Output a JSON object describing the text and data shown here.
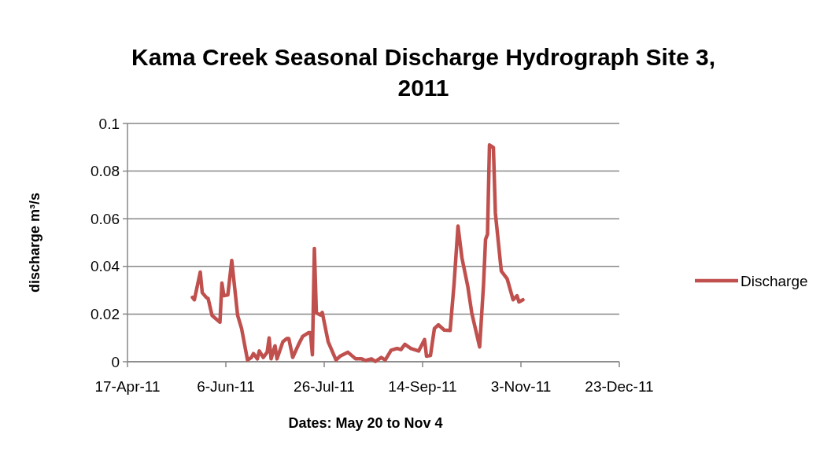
{
  "chart_data": {
    "type": "line",
    "title": "Kama Creek Seasonal Discharge Hydrograph Site 3, 2011",
    "xlabel": "Dates: May 20 to Nov 4",
    "ylabel": "discharge m³/s",
    "x": [
      "2011-05-20",
      "2011-05-21",
      "2011-05-24",
      "2011-05-25",
      "2011-05-27",
      "2011-05-28",
      "2011-05-30",
      "2011-06-03",
      "2011-06-04",
      "2011-06-05",
      "2011-06-07",
      "2011-06-09",
      "2011-06-12",
      "2011-06-14",
      "2011-06-17",
      "2011-06-19",
      "2011-06-20",
      "2011-06-22",
      "2011-06-23",
      "2011-06-25",
      "2011-06-27",
      "2011-06-28",
      "2011-06-29",
      "2011-07-01",
      "2011-07-02",
      "2011-07-05",
      "2011-07-07",
      "2011-07-08",
      "2011-07-10",
      "2011-07-13",
      "2011-07-15",
      "2011-07-18",
      "2011-07-19",
      "2011-07-20",
      "2011-07-21",
      "2011-07-22",
      "2011-07-24",
      "2011-07-25",
      "2011-07-28",
      "2011-08-01",
      "2011-08-03",
      "2011-08-07",
      "2011-08-11",
      "2011-08-14",
      "2011-08-16",
      "2011-08-19",
      "2011-08-21",
      "2011-08-24",
      "2011-08-26",
      "2011-08-29",
      "2011-09-01",
      "2011-09-03",
      "2011-09-05",
      "2011-09-08",
      "2011-09-12",
      "2011-09-15",
      "2011-09-16",
      "2011-09-18",
      "2011-09-20",
      "2011-09-22",
      "2011-09-25",
      "2011-09-28",
      "2011-09-30",
      "2011-10-02",
      "2011-10-04",
      "2011-10-07",
      "2011-10-09",
      "2011-10-13",
      "2011-10-15",
      "2011-10-16",
      "2011-10-17",
      "2011-10-18",
      "2011-10-20",
      "2011-10-21",
      "2011-10-24",
      "2011-10-27",
      "2011-10-30",
      "2011-11-01",
      "2011-11-02",
      "2011-11-04"
    ],
    "series": [
      {
        "name": "Discharge",
        "color": "#c0504d",
        "values": [
          0.027,
          0.026,
          0.0376,
          0.029,
          0.027,
          0.0265,
          0.0194,
          0.0166,
          0.033,
          0.0277,
          0.028,
          0.0425,
          0.0194,
          0.0139,
          0.0007,
          0.0018,
          0.0034,
          0.0012,
          0.0045,
          0.0018,
          0.004,
          0.01,
          0.0012,
          0.0067,
          0.0012,
          0.0084,
          0.0097,
          0.0097,
          0.0018,
          0.0073,
          0.0106,
          0.0122,
          0.0122,
          0.0029,
          0.0475,
          0.0205,
          0.0196,
          0.0207,
          0.0084,
          0.0007,
          0.0023,
          0.004,
          0.0012,
          0.0012,
          0.0005,
          0.0012,
          0.0001,
          0.0018,
          0.0007,
          0.0048,
          0.0056,
          0.0051,
          0.0073,
          0.0056,
          0.0045,
          0.0093,
          0.0023,
          0.0026,
          0.0139,
          0.0155,
          0.0133,
          0.0131,
          0.0326,
          0.0569,
          0.0436,
          0.0315,
          0.0205,
          0.0062,
          0.0326,
          0.0513,
          0.0535,
          0.091,
          0.0899,
          0.0624,
          0.0381,
          0.0348,
          0.026,
          0.0277,
          0.0251,
          0.026
        ]
      }
    ],
    "xlim": [
      "2011-04-17",
      "2011-12-23"
    ],
    "xticks": [
      {
        "value": "2011-04-17",
        "label": "17-Apr-11"
      },
      {
        "value": "2011-06-06",
        "label": "6-Jun-11"
      },
      {
        "value": "2011-07-26",
        "label": "26-Jul-11"
      },
      {
        "value": "2011-09-14",
        "label": "14-Sep-11"
      },
      {
        "value": "2011-11-03",
        "label": "3-Nov-11"
      },
      {
        "value": "2011-12-23",
        "label": "23-Dec-11"
      }
    ],
    "ylim": [
      0,
      0.1
    ],
    "yticks": [
      0,
      0.02,
      0.04,
      0.06,
      0.08,
      0.1
    ],
    "grid": "y",
    "legend": "right",
    "marker": "none",
    "line_style": "solid"
  }
}
